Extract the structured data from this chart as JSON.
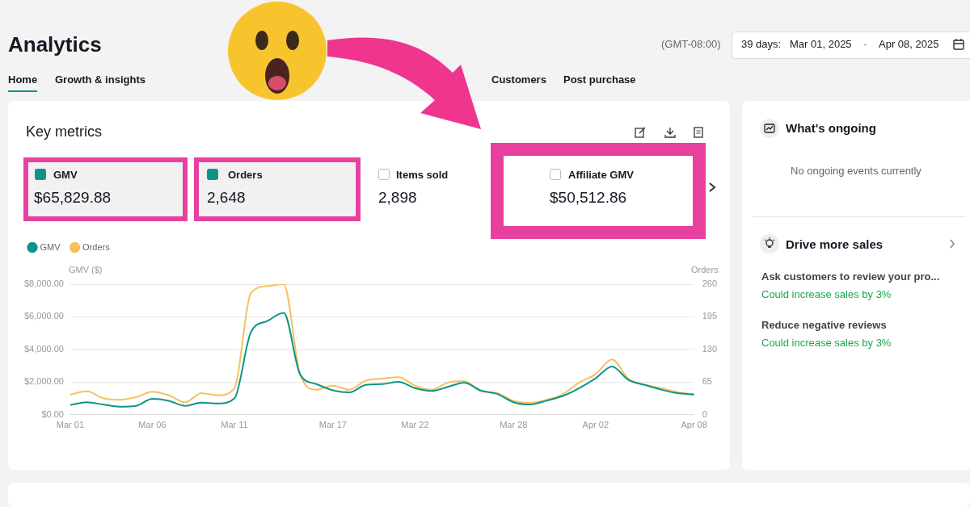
{
  "chart_data": {
    "type": "line",
    "title": "Key metrics",
    "annotations": [
      "Analytics",
      "(GMT-08:00)",
      "39 days:",
      "Mar 01, 2025",
      "-",
      "Apr 08, 2025",
      "Home",
      "Growth & insights",
      "Customers",
      "Post purchase",
      "GMV",
      "$65,829.88",
      "Orders",
      "2,648",
      "Items sold",
      "2,898",
      "Affiliate GMV",
      "$50,512.86",
      "What's ongoing",
      "No ongoing events currently",
      "Drive more sales",
      "Ask customers to review your pro...",
      "Could increase sales by 3%",
      "Reduce negative reviews",
      "Could increase sales by 3%"
    ],
    "categories": [
      "Mar 01",
      null,
      null,
      null,
      null,
      "Mar 06",
      null,
      null,
      null,
      null,
      "Mar 11",
      null,
      null,
      null,
      null,
      null,
      "Mar 17",
      null,
      null,
      null,
      null,
      "Mar 22",
      null,
      null,
      null,
      null,
      null,
      "Mar 28",
      null,
      null,
      null,
      null,
      "Apr 02",
      null,
      null,
      null,
      null,
      null,
      "Apr 08"
    ],
    "ylabel": "GMV ($)",
    "y2label": "Orders",
    "ylim": [
      0,
      8000
    ],
    "yticks": [
      {
        "value": 0,
        "label": "$0.00"
      },
      {
        "value": 2000,
        "label": "$2,000.00"
      },
      {
        "value": 4000,
        "label": "$4,000.00"
      },
      {
        "value": 6000,
        "label": "$6,000.00"
      },
      {
        "value": 8000,
        "label": "$8,000.00"
      }
    ],
    "y2lim": [
      0,
      260
    ],
    "y2ticks": [
      0,
      65,
      130,
      195,
      260
    ],
    "grid": "y",
    "legend": "top left",
    "marker": "none",
    "line_style": "solid",
    "series": [
      {
        "name": "GMV",
        "color": "#0d9488",
        "values": [
          600,
          770,
          630,
          500,
          550,
          980,
          860,
          550,
          740,
          690,
          1000,
          5050,
          5740,
          6250,
          2480,
          1880,
          1500,
          1370,
          1830,
          1880,
          2020,
          1630,
          1460,
          1710,
          1970,
          1490,
          1280,
          770,
          630,
          860,
          1150,
          1630,
          2230,
          2960,
          2140,
          1830,
          1540,
          1320,
          1250
        ]
      },
      {
        "name": "Orders",
        "color": "#f5c15d",
        "axis": "y2",
        "values": [
          40,
          47,
          33,
          30,
          35,
          46,
          39,
          25,
          43,
          39,
          53,
          242,
          256,
          260,
          81,
          50,
          58,
          50,
          68,
          72,
          75,
          58,
          50,
          64,
          67,
          47,
          43,
          28,
          24,
          30,
          41,
          64,
          81,
          110,
          72,
          60,
          53,
          45,
          40
        ]
      }
    ]
  }
}
